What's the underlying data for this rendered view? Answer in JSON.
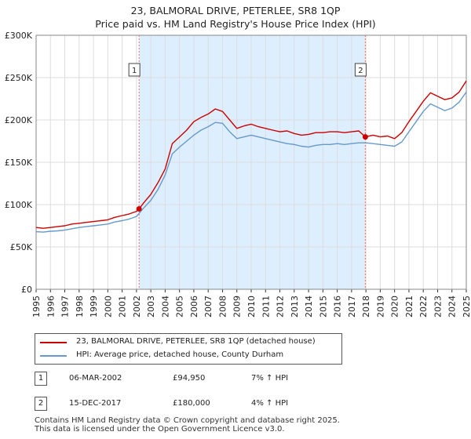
{
  "title_line1": "23, BALMORAL DRIVE, PETERLEE, SR8 1QP",
  "title_line2": "Price paid vs. HM Land Registry's House Price Index (HPI)",
  "colors": {
    "property": "#cc0000",
    "hpi": "#6699cc",
    "sale_region": "#ddeeff",
    "marker_line": "#ff6666",
    "grid": "#dddddd"
  },
  "chart_data": {
    "type": "line",
    "x_range": [
      1995,
      2025
    ],
    "ylim": [
      0,
      300000
    ],
    "y_ticks": [
      {
        "value": 0,
        "label": "£0"
      },
      {
        "value": 50000,
        "label": "£50K"
      },
      {
        "value": 100000,
        "label": "£100K"
      },
      {
        "value": 150000,
        "label": "£150K"
      },
      {
        "value": 200000,
        "label": "£200K"
      },
      {
        "value": 250000,
        "label": "£250K"
      },
      {
        "value": 300000,
        "label": "£300K"
      }
    ],
    "x_ticks": [
      "1995",
      "1996",
      "1997",
      "1998",
      "1999",
      "2000",
      "2001",
      "2002",
      "2003",
      "2004",
      "2005",
      "2006",
      "2007",
      "2008",
      "2009",
      "2010",
      "2011",
      "2012",
      "2013",
      "2014",
      "2015",
      "2016",
      "2017",
      "2018",
      "2019",
      "2020",
      "2021",
      "2022",
      "2023",
      "2024",
      "2025"
    ],
    "grid": true,
    "shaded_region": [
      2002.18,
      2017.96
    ],
    "series": [
      {
        "name": "23, BALMORAL DRIVE, PETERLEE, SR8 1QP (detached house)",
        "x": [
          1995.0,
          1995.5,
          1996.0,
          1996.5,
          1997.0,
          1997.5,
          1998.0,
          1998.5,
          1999.0,
          1999.5,
          2000.0,
          2000.5,
          2001.0,
          2001.5,
          2002.0,
          2002.18,
          2002.5,
          2003.0,
          2003.5,
          2004.0,
          2004.5,
          2005.0,
          2005.5,
          2006.0,
          2006.5,
          2007.0,
          2007.5,
          2008.0,
          2008.5,
          2009.0,
          2009.5,
          2010.0,
          2010.5,
          2011.0,
          2011.5,
          2012.0,
          2012.5,
          2013.0,
          2013.5,
          2014.0,
          2014.5,
          2015.0,
          2015.5,
          2016.0,
          2016.5,
          2017.0,
          2017.5,
          2017.96,
          2018.5,
          2019.0,
          2019.5,
          2020.0,
          2020.5,
          2021.0,
          2021.5,
          2022.0,
          2022.5,
          2023.0,
          2023.5,
          2024.0,
          2024.5,
          2025.0
        ],
        "values": [
          73000,
          72000,
          73000,
          74000,
          75000,
          77000,
          78000,
          79000,
          80000,
          81000,
          82000,
          85000,
          87000,
          89000,
          92000,
          94950,
          102000,
          112000,
          126000,
          142000,
          172000,
          180000,
          188000,
          198000,
          203000,
          207000,
          213000,
          210000,
          200000,
          190000,
          193000,
          195000,
          192000,
          190000,
          188000,
          186000,
          187000,
          184000,
          182000,
          183000,
          185000,
          185000,
          186000,
          186000,
          185000,
          186000,
          187000,
          180000,
          182000,
          180000,
          181000,
          178000,
          185000,
          198000,
          210000,
          222000,
          232000,
          228000,
          224000,
          226000,
          233000,
          246000
        ]
      },
      {
        "name": "HPI: Average price, detached house, County Durham",
        "x": [
          1995.0,
          1995.5,
          1996.0,
          1996.5,
          1997.0,
          1997.5,
          1998.0,
          1998.5,
          1999.0,
          1999.5,
          2000.0,
          2000.5,
          2001.0,
          2001.5,
          2002.0,
          2002.5,
          2003.0,
          2003.5,
          2004.0,
          2004.5,
          2005.0,
          2005.5,
          2006.0,
          2006.5,
          2007.0,
          2007.5,
          2008.0,
          2008.5,
          2009.0,
          2009.5,
          2010.0,
          2010.5,
          2011.0,
          2011.5,
          2012.0,
          2012.5,
          2013.0,
          2013.5,
          2014.0,
          2014.5,
          2015.0,
          2015.5,
          2016.0,
          2016.5,
          2017.0,
          2017.5,
          2018.0,
          2018.5,
          2019.0,
          2019.5,
          2020.0,
          2020.5,
          2021.0,
          2021.5,
          2022.0,
          2022.5,
          2023.0,
          2023.5,
          2024.0,
          2024.5,
          2025.0
        ],
        "values": [
          68000,
          67500,
          68500,
          69000,
          70000,
          71500,
          73000,
          74000,
          75000,
          76000,
          77000,
          79500,
          81000,
          83000,
          86000,
          96000,
          105000,
          118000,
          135000,
          160000,
          168000,
          175000,
          182000,
          188000,
          192000,
          197000,
          196000,
          186000,
          178000,
          180000,
          182000,
          180000,
          178000,
          176000,
          174000,
          172000,
          171000,
          169000,
          168000,
          170000,
          171000,
          171000,
          172000,
          171000,
          172000,
          173000,
          173000,
          172000,
          171000,
          170000,
          169000,
          174000,
          186000,
          198000,
          210000,
          219000,
          215000,
          211000,
          214000,
          221000,
          233000
        ]
      }
    ],
    "sales": [
      {
        "id": "1",
        "year": 2002.18,
        "price": 94950
      },
      {
        "id": "2",
        "year": 2017.96,
        "price": 180000
      }
    ]
  },
  "legend": {
    "property": "23, BALMORAL DRIVE, PETERLEE, SR8 1QP (detached house)",
    "hpi": "HPI: Average price, detached house, County Durham"
  },
  "transactions": [
    {
      "badge": "1",
      "date": "06-MAR-2002",
      "price": "£94,950",
      "delta": "7% ↑ HPI"
    },
    {
      "badge": "2",
      "date": "15-DEC-2017",
      "price": "£180,000",
      "delta": "4% ↑ HPI"
    }
  ],
  "footer": {
    "line1": "Contains HM Land Registry data © Crown copyright and database right 2025.",
    "line2": "This data is licensed under the Open Government Licence v3.0."
  }
}
